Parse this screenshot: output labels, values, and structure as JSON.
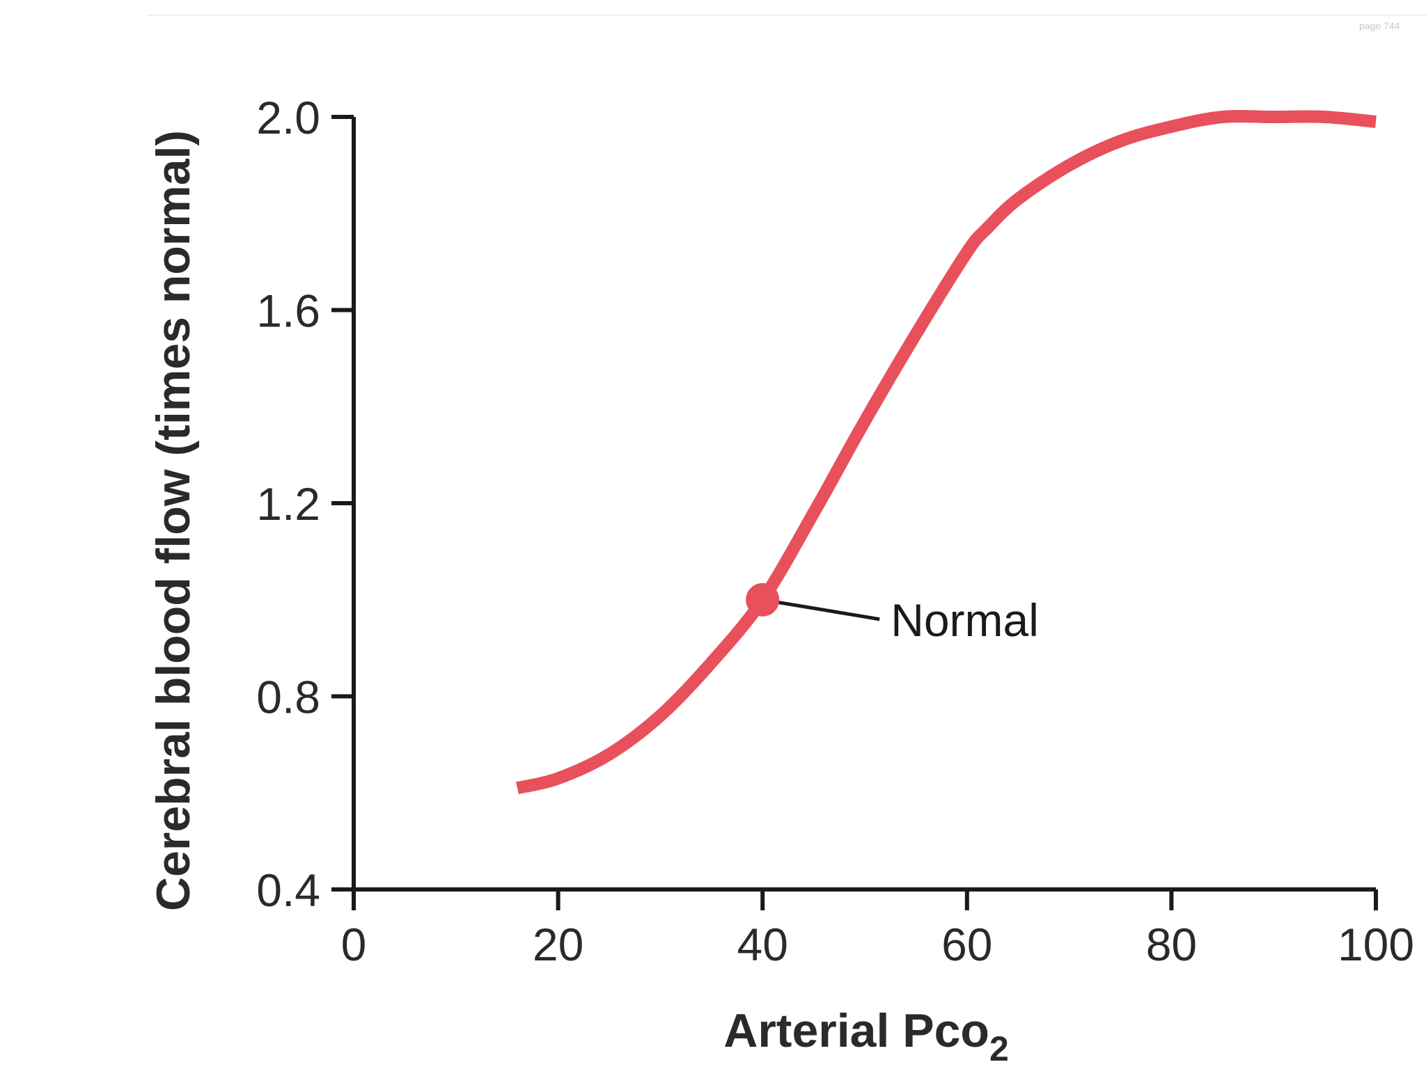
{
  "chart_data": {
    "type": "line",
    "title": "",
    "xlabel": "Arterial Pco",
    "xlabel_subscript": "2",
    "ylabel": "Cerebral blood flow (times normal)",
    "xlim": [
      0,
      100
    ],
    "ylim": [
      0.4,
      2.0
    ],
    "x_ticks": [
      "0",
      "20",
      "40",
      "60",
      "80",
      "100"
    ],
    "y_ticks": [
      "0.4",
      "0.8",
      "1.2",
      "1.6",
      "2.0"
    ],
    "grid": false,
    "legend": "none",
    "series": [
      {
        "color": "#e8505b",
        "x": [
          16,
          20,
          25,
          30,
          35,
          40,
          45,
          50,
          55,
          60,
          62,
          65,
          70,
          75,
          80,
          85,
          90,
          95,
          100
        ],
        "y": [
          0.61,
          0.63,
          0.68,
          0.76,
          0.87,
          1.0,
          1.18,
          1.37,
          1.55,
          1.72,
          1.77,
          1.83,
          1.9,
          1.95,
          1.98,
          2.0,
          2.0,
          2.0,
          1.99
        ]
      }
    ],
    "annotations": [
      {
        "text": "Normal",
        "x": 40,
        "y": 1.0
      }
    ]
  },
  "page_label": "page 744"
}
